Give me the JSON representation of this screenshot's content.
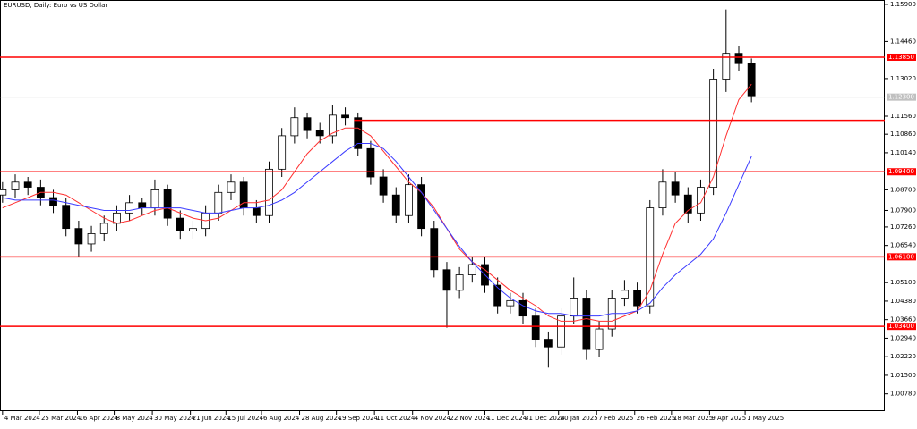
{
  "chart_data": {
    "type": "candlestick",
    "title": "EURUSD, Daily:  Euro vs US Dollar",
    "up_color": "#ffffff",
    "down_color": "#000000",
    "wick_color": "#000000",
    "xlim": [
      -0.2,
      69.5
    ],
    "ylim": [
      1.0011,
      1.1607
    ],
    "xticks": [
      {
        "value": 0,
        "label": "4 Mar 2024"
      },
      {
        "value": 2.9,
        "label": "25 Mar 2024"
      },
      {
        "value": 5.9,
        "label": "16 Apr 2024"
      },
      {
        "value": 8.8,
        "label": "8 May 2024"
      },
      {
        "value": 11.8,
        "label": "30 May 2024"
      },
      {
        "value": 14.8,
        "label": "21 Jun 2024"
      },
      {
        "value": 17.6,
        "label": "15 Jul 2024"
      },
      {
        "value": 20.4,
        "label": "6 Aug 2024"
      },
      {
        "value": 23.4,
        "label": "28 Aug 2024"
      },
      {
        "value": 26.3,
        "label": "19 Sep 2024"
      },
      {
        "value": 29.3,
        "label": "11 Oct 2024"
      },
      {
        "value": 32.3,
        "label": "4 Nov 2024"
      },
      {
        "value": 35.1,
        "label": "22 Nov 2024"
      },
      {
        "value": 38,
        "label": "11 Dec 2024"
      },
      {
        "value": 41,
        "label": "31 Dec 2024"
      },
      {
        "value": 43.8,
        "label": "20 Jan 2025"
      },
      {
        "value": 46.8,
        "label": "7 Feb 2025"
      },
      {
        "value": 49.8,
        "label": "26 Feb 2025"
      },
      {
        "value": 52.7,
        "label": "18 Mar 2025"
      },
      {
        "value": 55.7,
        "label": "9 Apr 2025"
      },
      {
        "value": 58.5,
        "label": "1 May 2025"
      }
    ],
    "yticks": [
      {
        "value": 1.159,
        "label": "1.15900"
      },
      {
        "value": 1.1446,
        "label": "1.14460"
      },
      {
        "value": 1.1302,
        "label": "1.13020"
      },
      {
        "value": 1.1156,
        "label": "1.11560"
      },
      {
        "value": 1.1086,
        "label": "1.10860"
      },
      {
        "value": 1.1014,
        "label": "1.10140"
      },
      {
        "value": 1.087,
        "label": "1.08700"
      },
      {
        "value": 1.079,
        "label": "1.07900"
      },
      {
        "value": 1.0726,
        "label": "1.07260"
      },
      {
        "value": 1.0654,
        "label": "1.06540"
      },
      {
        "value": 1.051,
        "label": "1.05100"
      },
      {
        "value": 1.0438,
        "label": "1.04380"
      },
      {
        "value": 1.0366,
        "label": "1.03660"
      },
      {
        "value": 1.0294,
        "label": "1.02940"
      },
      {
        "value": 1.0222,
        "label": "1.02220"
      },
      {
        "value": 1.015,
        "label": "1.01500"
      },
      {
        "value": 1.0078,
        "label": "1.00780"
      }
    ],
    "open": [
      1.085,
      1.087,
      1.09,
      1.088,
      1.084,
      1.081,
      1.072,
      1.066,
      1.07,
      1.074,
      1.078,
      1.082,
      1.08,
      1.087,
      1.076,
      1.071,
      1.072,
      1.078,
      1.086,
      1.09,
      1.08,
      1.077,
      1.095,
      1.108,
      1.115,
      1.11,
      1.108,
      1.116,
      1.115,
      1.103,
      1.092,
      1.085,
      1.077,
      1.089,
      1.072,
      1.056,
      1.048,
      1.054,
      1.058,
      1.05,
      1.042,
      1.044,
      1.038,
      1.029,
      1.026,
      1.038,
      1.045,
      1.025,
      1.033,
      1.045,
      1.048,
      1.042,
      1.08,
      1.09,
      1.085,
      1.078,
      1.088,
      1.13,
      1.14,
      1.136
    ],
    "high": [
      1.09,
      1.093,
      1.092,
      1.091,
      1.087,
      1.084,
      1.075,
      1.073,
      1.077,
      1.081,
      1.085,
      1.084,
      1.091,
      1.089,
      1.079,
      1.075,
      1.081,
      1.089,
      1.093,
      1.092,
      1.083,
      1.098,
      1.111,
      1.119,
      1.117,
      1.113,
      1.12,
      1.119,
      1.117,
      1.106,
      1.095,
      1.088,
      1.093,
      1.092,
      1.075,
      1.059,
      1.057,
      1.061,
      1.061,
      1.053,
      1.047,
      1.047,
      1.041,
      1.032,
      1.041,
      1.053,
      1.048,
      1.036,
      1.048,
      1.052,
      1.051,
      1.083,
      1.095,
      1.094,
      1.088,
      1.091,
      1.134,
      1.157,
      1.143,
      1.138
    ],
    "low": [
      1.082,
      1.084,
      1.085,
      1.081,
      1.078,
      1.069,
      1.061,
      1.063,
      1.067,
      1.071,
      1.075,
      1.077,
      1.077,
      1.073,
      1.068,
      1.068,
      1.069,
      1.075,
      1.083,
      1.077,
      1.074,
      1.074,
      1.092,
      1.105,
      1.107,
      1.105,
      1.105,
      1.112,
      1.1,
      1.089,
      1.082,
      1.074,
      1.074,
      1.069,
      1.053,
      1.0335,
      1.045,
      1.051,
      1.047,
      1.039,
      1.039,
      1.035,
      1.026,
      1.018,
      1.023,
      1.035,
      1.021,
      1.022,
      1.03,
      1.042,
      1.039,
      1.039,
      1.077,
      1.082,
      1.074,
      1.075,
      1.085,
      1.125,
      1.133,
      1.121
    ],
    "close": [
      1.087,
      1.09,
      1.088,
      1.084,
      1.081,
      1.072,
      1.066,
      1.07,
      1.074,
      1.078,
      1.082,
      1.08,
      1.087,
      1.076,
      1.071,
      1.072,
      1.078,
      1.086,
      1.09,
      1.08,
      1.077,
      1.095,
      1.108,
      1.115,
      1.11,
      1.108,
      1.116,
      1.115,
      1.103,
      1.092,
      1.085,
      1.077,
      1.089,
      1.072,
      1.056,
      1.048,
      1.054,
      1.058,
      1.05,
      1.042,
      1.044,
      1.038,
      1.029,
      1.026,
      1.038,
      1.045,
      1.025,
      1.033,
      1.045,
      1.048,
      1.042,
      1.08,
      1.09,
      1.085,
      1.078,
      1.088,
      1.13,
      1.14,
      1.136,
      1.1235
    ],
    "moving_averages": [
      {
        "color": "#ff3030",
        "values": [
          1.08,
          1.082,
          1.084,
          1.086,
          1.086,
          1.085,
          1.082,
          1.079,
          1.076,
          1.074,
          1.075,
          1.077,
          1.079,
          1.08,
          1.078,
          1.076,
          1.075,
          1.076,
          1.079,
          1.082,
          1.082,
          1.083,
          1.087,
          1.094,
          1.101,
          1.106,
          1.109,
          1.111,
          1.111,
          1.108,
          1.102,
          1.096,
          1.09,
          1.086,
          1.08,
          1.072,
          1.064,
          1.059,
          1.056,
          1.052,
          1.048,
          1.045,
          1.042,
          1.038,
          1.036,
          1.036,
          1.037,
          1.036,
          1.036,
          1.038,
          1.04,
          1.048,
          1.062,
          1.074,
          1.079,
          1.082,
          1.092,
          1.108,
          1.122,
          1.128
        ]
      },
      {
        "color": "#3a3aff",
        "values": [
          1.084,
          1.083,
          1.083,
          1.083,
          1.083,
          1.082,
          1.081,
          1.08,
          1.079,
          1.079,
          1.079,
          1.08,
          1.08,
          1.08,
          1.08,
          1.079,
          1.078,
          1.078,
          1.079,
          1.08,
          1.08,
          1.081,
          1.083,
          1.086,
          1.09,
          1.094,
          1.098,
          1.102,
          1.105,
          1.105,
          1.103,
          1.098,
          1.092,
          1.086,
          1.079,
          1.072,
          1.065,
          1.059,
          1.054,
          1.049,
          1.045,
          1.042,
          1.04,
          1.039,
          1.039,
          1.038,
          1.038,
          1.038,
          1.039,
          1.039,
          1.04,
          1.043,
          1.049,
          1.054,
          1.058,
          1.062,
          1.068,
          1.078,
          1.089,
          1.1
        ]
      }
    ],
    "levels": [
      {
        "value": 1.1385,
        "label": "1.13850",
        "color": "#ff0000"
      },
      {
        "value": 1.114,
        "from": 27.7,
        "color": "#ff0000"
      },
      {
        "value": 1.094,
        "label": "1.09400",
        "color": "#ff0000"
      },
      {
        "value": 1.061,
        "label": "1.06100",
        "color": "#ff0000"
      },
      {
        "value": 1.034,
        "label": "1.03400",
        "color": "#ff0000"
      }
    ],
    "current_price": {
      "value": 1.123,
      "label": "1.12300",
      "color": "#c0c0c0"
    }
  }
}
